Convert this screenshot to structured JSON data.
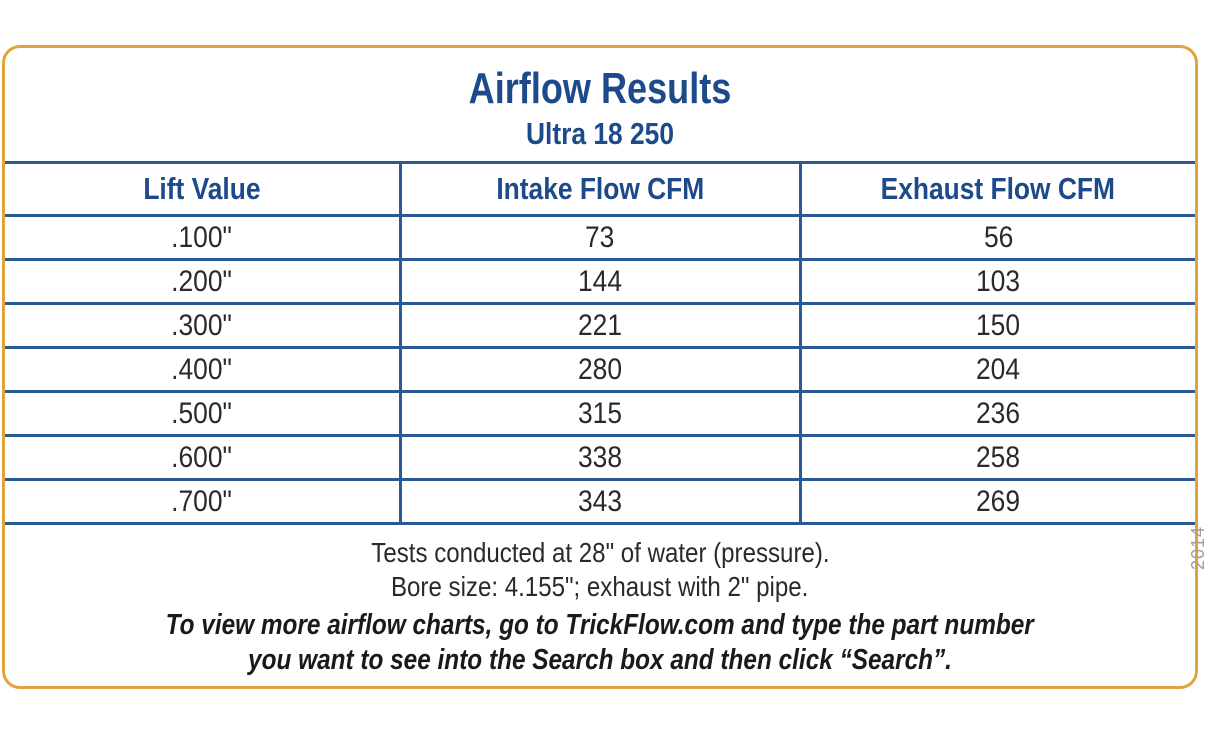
{
  "header": {
    "title": "Airflow Results",
    "subtitle": "Ultra 18 250"
  },
  "table": {
    "columns": [
      "Lift Value",
      "Intake Flow CFM",
      "Exhaust Flow CFM"
    ],
    "rows": [
      [
        ".100\"",
        "73",
        "56"
      ],
      [
        ".200\"",
        "144",
        "103"
      ],
      [
        ".300\"",
        "221",
        "150"
      ],
      [
        ".400\"",
        "280",
        "204"
      ],
      [
        ".500\"",
        "315",
        "236"
      ],
      [
        ".600\"",
        "338",
        "258"
      ],
      [
        ".700\"",
        "343",
        "269"
      ]
    ]
  },
  "notes": {
    "line1": "Tests conducted at 28\" of water (pressure).",
    "line2": "Bore size: 4.155\"; exhaust with 2\" pipe."
  },
  "cta": {
    "line1": "To view more airflow charts, go to TrickFlow.com and type the part number",
    "line2": "you want to see into the Search box and then click “Search”."
  },
  "year_mark": "2014",
  "colors": {
    "border": "#e3a33a",
    "heading": "#1d4a8a",
    "rule": "#2b5a93"
  }
}
